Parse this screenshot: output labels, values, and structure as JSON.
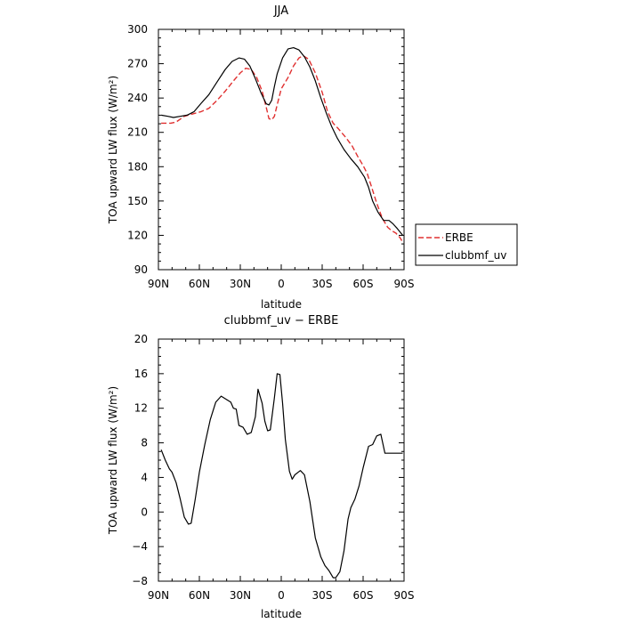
{
  "chart_data": [
    {
      "type": "line",
      "title": "JJA",
      "xlabel": "latitude",
      "ylabel": "TOA upward LW flux (W/m²)",
      "xlim": [
        -90,
        90
      ],
      "ylim": [
        90,
        300
      ],
      "xticks": [
        -90,
        -60,
        -30,
        0,
        30,
        60,
        90
      ],
      "xtick_labels": [
        "90N",
        "60N",
        "30N",
        "0",
        "30S",
        "60S",
        "90S"
      ],
      "yticks": [
        90,
        120,
        150,
        180,
        210,
        240,
        270,
        300
      ],
      "ytick_labels": [
        "90",
        "120",
        "150",
        "180",
        "210",
        "240",
        "270",
        "300"
      ],
      "grid": false,
      "legend_position": "right",
      "series": [
        {
          "name": "ERBE",
          "color": "#e03030",
          "dash": true,
          "x": [
            -88,
            -81,
            -77,
            -71,
            -65,
            -59,
            -53,
            -47,
            -41,
            -35,
            -30,
            -26,
            -22,
            -18,
            -14,
            -11,
            -9,
            -7,
            -5,
            -3,
            0,
            5,
            9,
            13,
            16,
            20,
            25,
            30,
            34,
            38,
            42,
            47,
            52,
            56,
            60,
            63,
            66,
            70,
            74,
            78,
            81,
            84,
            87,
            89
          ],
          "y": [
            218,
            218,
            219,
            224,
            226,
            228,
            231,
            238,
            246,
            255,
            262,
            266,
            265,
            258,
            246,
            232,
            222,
            221,
            224,
            234,
            248,
            258,
            268,
            275,
            277,
            274,
            262,
            245,
            228,
            218,
            213,
            206,
            198,
            189,
            181,
            174,
            163,
            148,
            135,
            127,
            124,
            122,
            118,
            114
          ]
        },
        {
          "name": "clubbmf_uv",
          "color": "#000000",
          "dash": false,
          "x": [
            -88,
            -83,
            -79,
            -74,
            -69,
            -64,
            -59,
            -53,
            -47,
            -41,
            -36,
            -31,
            -27,
            -23,
            -19,
            -15,
            -11,
            -9,
            -7,
            -5,
            -3,
            1,
            5,
            9,
            13,
            17,
            21,
            25,
            29,
            33,
            37,
            41,
            46,
            51,
            56,
            61,
            64,
            67,
            71,
            75,
            79,
            82,
            85,
            89
          ],
          "y": [
            225,
            224,
            223,
            224,
            225,
            228,
            235,
            243,
            254,
            265,
            272,
            275,
            274,
            268,
            257,
            245,
            235,
            234,
            238,
            250,
            261,
            275,
            283,
            284,
            282,
            276,
            267,
            255,
            240,
            227,
            215,
            205,
            195,
            187,
            180,
            171,
            162,
            150,
            140,
            133,
            133,
            130,
            126,
            120
          ]
        }
      ]
    },
    {
      "type": "line",
      "title": "clubbmf_uv − ERBE",
      "xlabel": "latitude",
      "ylabel": "TOA upward LW flux (W/m²)",
      "xlim": [
        -90,
        90
      ],
      "ylim": [
        -8,
        20
      ],
      "xticks": [
        -90,
        -60,
        -30,
        0,
        30,
        60,
        90
      ],
      "xtick_labels": [
        "90N",
        "60N",
        "30N",
        "0",
        "30S",
        "60S",
        "90S"
      ],
      "yticks": [
        -8,
        -4,
        0,
        4,
        8,
        12,
        16,
        20
      ],
      "ytick_labels": [
        "−8",
        "−4",
        "0",
        "4",
        "8",
        "12",
        "16",
        "20"
      ],
      "grid": false,
      "series": [
        {
          "color": "#000000",
          "dash": false,
          "x": [
            -88,
            -85,
            -82,
            -80,
            -77,
            -74,
            -71,
            -68,
            -66,
            -63,
            -60,
            -56,
            -52,
            -48,
            -44,
            -40,
            -37,
            -35,
            -33,
            -31,
            -28,
            -25,
            -22,
            -19,
            -17,
            -14,
            -12,
            -10,
            -8,
            -5,
            -3,
            -1,
            1,
            3,
            6,
            8,
            10,
            14,
            17,
            21,
            25,
            29,
            32,
            35,
            38,
            40,
            43,
            46,
            49,
            51,
            54,
            57,
            60,
            64,
            67,
            70,
            73,
            76,
            78,
            80,
            83,
            85,
            88,
            89
          ],
          "y": [
            7.2,
            6.0,
            5.0,
            4.6,
            3.4,
            1.5,
            -0.6,
            -1.4,
            -1.3,
            1.5,
            4.6,
            7.8,
            10.7,
            12.7,
            13.4,
            13.0,
            12.7,
            12.0,
            11.9,
            10.0,
            9.8,
            9.0,
            9.2,
            11.0,
            14.2,
            12.6,
            10.5,
            9.4,
            9.5,
            13.2,
            16.0,
            15.9,
            12.6,
            8.4,
            4.7,
            3.8,
            4.3,
            4.8,
            4.3,
            1.2,
            -3.0,
            -5.2,
            -6.2,
            -6.8,
            -7.6,
            -7.6,
            -6.9,
            -4.5,
            -0.8,
            0.5,
            1.5,
            3.0,
            5.1,
            7.6,
            7.8,
            8.8,
            9.0,
            6.8,
            6.8,
            6.8,
            6.8,
            6.8,
            6.8,
            6.8
          ]
        }
      ]
    }
  ],
  "legend": {
    "items": [
      {
        "label": "ERBE",
        "color": "#e03030",
        "dash": true
      },
      {
        "label": "clubbmf_uv",
        "color": "#000000",
        "dash": false
      }
    ]
  }
}
